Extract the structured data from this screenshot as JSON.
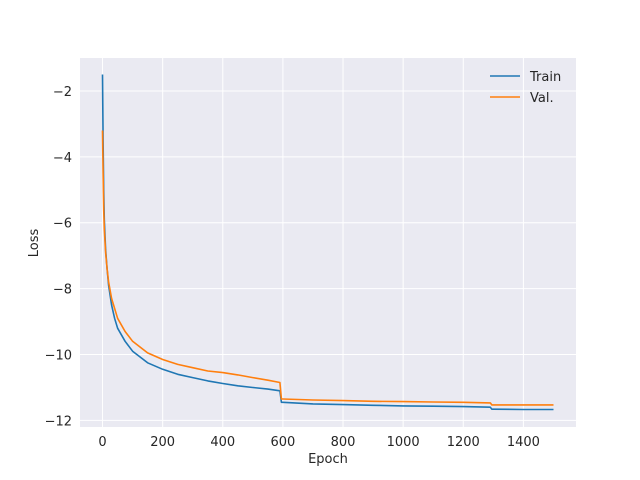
{
  "chart_data": {
    "type": "line",
    "xlabel": "Epoch",
    "ylabel": "Loss",
    "xlim": [
      -75,
      1575
    ],
    "ylim": [
      -12.2,
      -1.0
    ],
    "xticks": [
      0,
      200,
      400,
      600,
      800,
      1000,
      1200,
      1400
    ],
    "yticks": [
      -12,
      -10,
      -8,
      -6,
      -4,
      -2
    ],
    "grid": true,
    "legend_position": "top-right",
    "series": [
      {
        "name": "Train",
        "color": "#1f77b4",
        "x": [
          0,
          2,
          4,
          6,
          10,
          15,
          20,
          30,
          40,
          50,
          75,
          100,
          150,
          200,
          250,
          300,
          350,
          400,
          450,
          500,
          550,
          590,
          595,
          600,
          700,
          800,
          900,
          1000,
          1100,
          1200,
          1290,
          1295,
          1300,
          1400,
          1500
        ],
        "values": [
          -1.5,
          -3.5,
          -5.0,
          -5.9,
          -6.8,
          -7.4,
          -7.9,
          -8.5,
          -8.9,
          -9.2,
          -9.6,
          -9.9,
          -10.25,
          -10.45,
          -10.6,
          -10.7,
          -10.8,
          -10.88,
          -10.95,
          -11.0,
          -11.05,
          -11.1,
          -11.45,
          -11.45,
          -11.5,
          -11.52,
          -11.54,
          -11.56,
          -11.57,
          -11.58,
          -11.6,
          -11.66,
          -11.66,
          -11.67,
          -11.67
        ]
      },
      {
        "name": "Val.",
        "color": "#ff7f0e",
        "x": [
          0,
          2,
          4,
          6,
          10,
          15,
          20,
          30,
          40,
          50,
          75,
          100,
          150,
          200,
          250,
          300,
          350,
          400,
          450,
          500,
          550,
          590,
          595,
          600,
          700,
          800,
          900,
          1000,
          1100,
          1200,
          1290,
          1295,
          1300,
          1400,
          1500
        ],
        "values": [
          -3.2,
          -4.5,
          -5.6,
          -6.2,
          -6.9,
          -7.4,
          -7.8,
          -8.3,
          -8.6,
          -8.9,
          -9.3,
          -9.6,
          -9.95,
          -10.15,
          -10.3,
          -10.4,
          -10.5,
          -10.55,
          -10.62,
          -10.7,
          -10.78,
          -10.85,
          -11.35,
          -11.35,
          -11.38,
          -11.4,
          -11.42,
          -11.43,
          -11.44,
          -11.45,
          -11.47,
          -11.53,
          -11.53,
          -11.53,
          -11.53
        ]
      }
    ]
  }
}
